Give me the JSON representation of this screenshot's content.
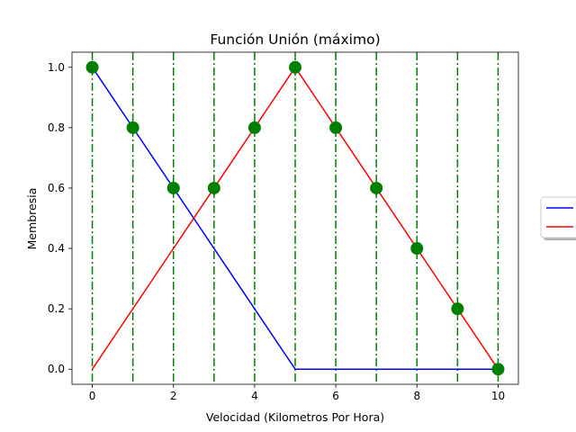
{
  "chart_data": {
    "type": "line",
    "title": "Función Unión (máximo)",
    "xlabel": "Velocidad (Kilometros Por Hora)",
    "ylabel": "Membresia",
    "xlim": [
      -0.5,
      10.5
    ],
    "ylim": [
      -0.05,
      1.05
    ],
    "xticks": [
      "0",
      "2",
      "4",
      "6",
      "8",
      "10"
    ],
    "yticks": [
      "0.0",
      "0.2",
      "0.4",
      "0.6",
      "0.8",
      "1.0"
    ],
    "grid": false,
    "legend": {
      "location": "right, outside plot (clipped)",
      "entries_visible": false
    },
    "series": [
      {
        "style": "line",
        "color": "#0000ff",
        "x": [
          0,
          5,
          10
        ],
        "y": [
          1.0,
          0.0,
          0.0
        ]
      },
      {
        "style": "line",
        "color": "#ff0000",
        "x": [
          0,
          5,
          10
        ],
        "y": [
          0.0,
          1.0,
          0.0
        ]
      },
      {
        "style": "scatter",
        "color": "#008000",
        "x": [
          0,
          1,
          2,
          3,
          4,
          5,
          6,
          7,
          8,
          9,
          10
        ],
        "y": [
          1.0,
          0.8,
          0.6,
          0.6,
          0.8,
          1.0,
          0.8,
          0.6,
          0.4,
          0.2,
          0.0
        ]
      },
      {
        "style": "vertical-dashdot-lines",
        "color": "#008000",
        "x": [
          0,
          1,
          2,
          3,
          4,
          5,
          6,
          7,
          8,
          9,
          10
        ]
      }
    ]
  }
}
